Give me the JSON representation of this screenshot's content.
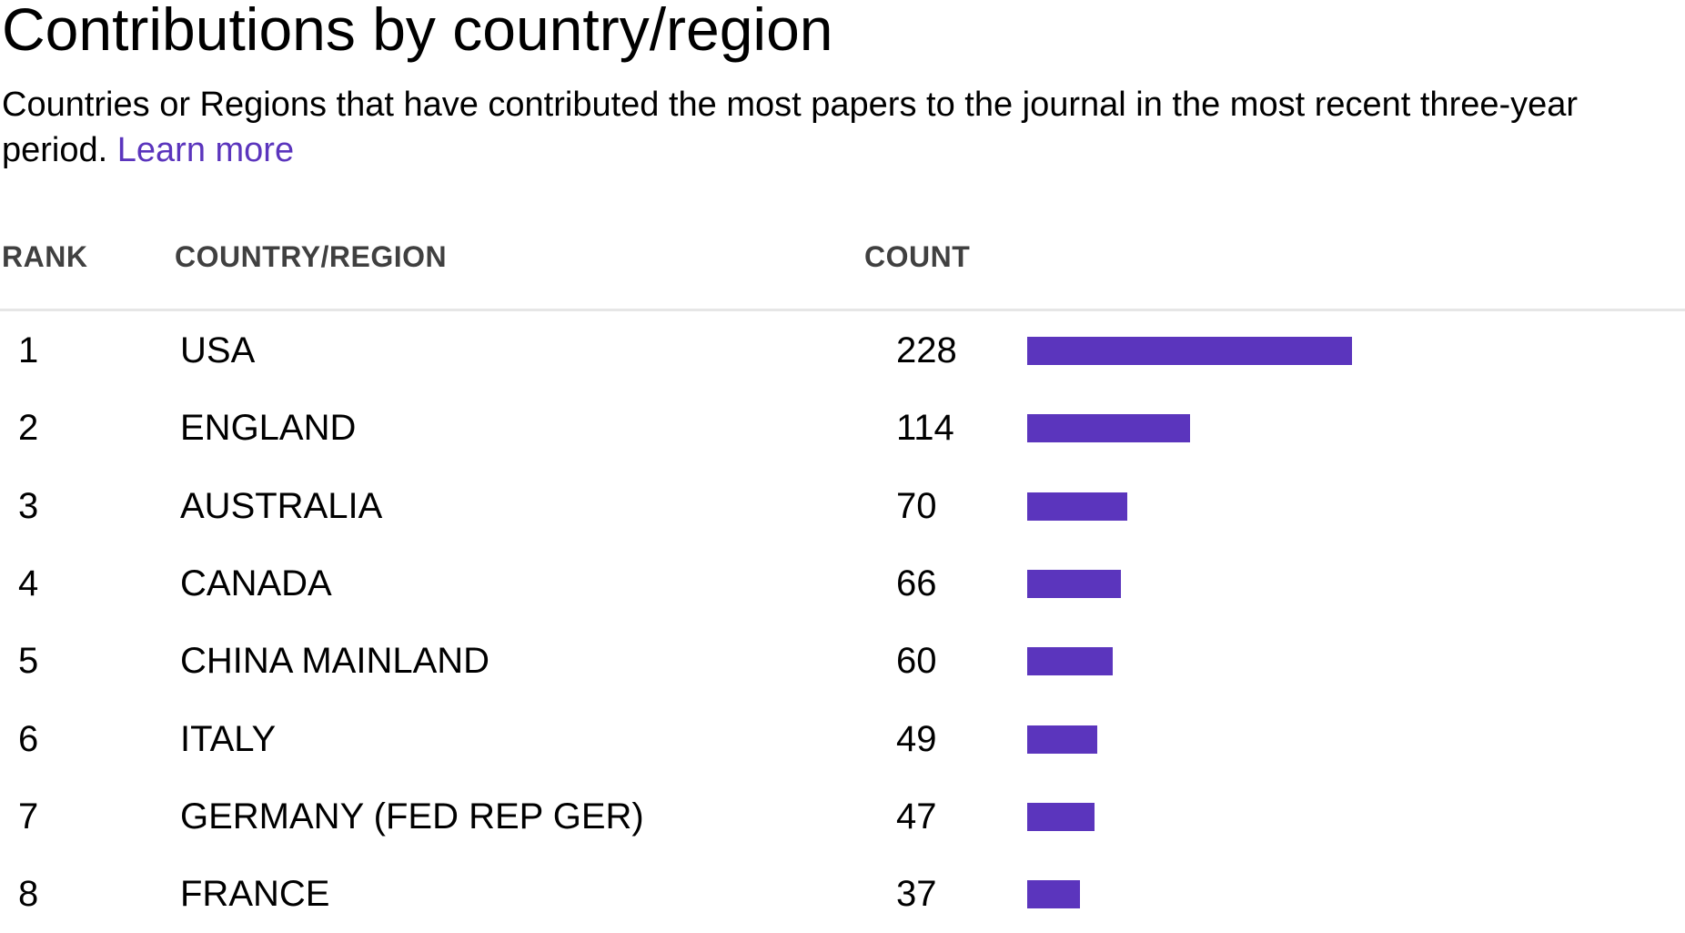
{
  "title": "Contributions by country/region",
  "description": {
    "text": "Countries or Regions that have contributed the most papers to the journal in the most recent three-year period.",
    "link_label": "Learn more"
  },
  "table": {
    "headers": {
      "rank": "RANK",
      "country": "COUNTRY/REGION",
      "count": "COUNT"
    }
  },
  "colors": {
    "bar": "#5b35bd",
    "link": "#5b35bd",
    "header_text": "#404040",
    "rule": "#e6e6e6"
  },
  "chart_data": {
    "type": "bar",
    "orientation": "horizontal",
    "title": "Contributions by country/region",
    "rows": [
      {
        "rank": "1",
        "country": "USA",
        "count": 228
      },
      {
        "rank": "2",
        "country": "ENGLAND",
        "count": 114
      },
      {
        "rank": "3",
        "country": "AUSTRALIA",
        "count": 70
      },
      {
        "rank": "4",
        "country": "CANADA",
        "count": 66
      },
      {
        "rank": "5",
        "country": "CHINA MAINLAND",
        "count": 60
      },
      {
        "rank": "6",
        "country": "ITALY",
        "count": 49
      },
      {
        "rank": "7",
        "country": "GERMANY (FED REP GER)",
        "count": 47
      },
      {
        "rank": "8",
        "country": "FRANCE",
        "count": 37
      }
    ]
  }
}
